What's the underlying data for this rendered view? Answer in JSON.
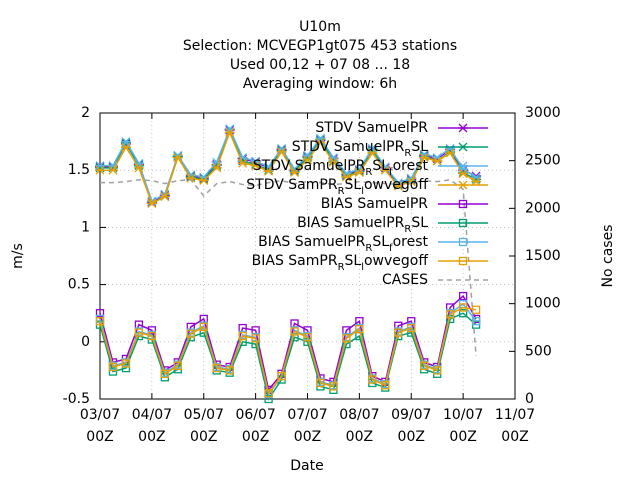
{
  "chart_data": {
    "type": "line",
    "title": [
      "U10m",
      "Selection: MCVEGP1gt075    453 stations",
      "Used  00,12  + 07 08 ... 18",
      "Averaging window:  6h"
    ],
    "x_label": "Date",
    "y_label": "m/s",
    "y2_label": "No cases",
    "x": [
      0,
      6,
      12,
      18,
      24,
      30,
      36,
      42,
      48,
      54,
      60,
      66,
      72,
      78,
      84,
      90,
      96,
      102,
      108,
      114,
      120,
      126,
      132,
      138,
      144,
      150,
      156,
      162,
      168,
      174
    ],
    "xlim": [
      0,
      192
    ],
    "xticks": [
      {
        "value": 0,
        "label": "03/07\n00Z"
      },
      {
        "value": 24,
        "label": "04/07\n00Z"
      },
      {
        "value": 48,
        "label": "05/07\n00Z"
      },
      {
        "value": 72,
        "label": "06/07\n00Z"
      },
      {
        "value": 96,
        "label": "07/07\n00Z"
      },
      {
        "value": 120,
        "label": "08/07\n00Z"
      },
      {
        "value": 144,
        "label": "09/07\n00Z"
      },
      {
        "value": 168,
        "label": "10/07\n00Z"
      },
      {
        "value": 192,
        "label": "11/07\n00Z"
      }
    ],
    "ylim": [
      -0.5,
      2
    ],
    "yticks": [
      -0.5,
      0,
      0.5,
      1,
      1.5,
      2
    ],
    "y2lim": [
      0,
      3000
    ],
    "y2ticks": [
      0,
      500,
      1000,
      1500,
      2000,
      2500,
      3000
    ],
    "grid": true,
    "legend": "top-right",
    "series": [
      {
        "name": "STDV SamuelPR",
        "color": "#9400d3",
        "marker": "cross",
        "values": [
          1.53,
          1.53,
          1.73,
          1.55,
          1.22,
          1.28,
          1.62,
          1.45,
          1.43,
          1.55,
          1.85,
          1.6,
          1.57,
          1.52,
          1.68,
          1.5,
          1.62,
          1.76,
          1.6,
          1.46,
          1.5,
          1.68,
          1.52,
          1.38,
          1.42,
          1.63,
          1.6,
          1.68,
          1.5,
          1.45
        ]
      },
      {
        "name": "STDV SamuelPR_RSL",
        "color": "#009e73",
        "marker": "cross",
        "values": [
          1.52,
          1.52,
          1.74,
          1.54,
          1.21,
          1.27,
          1.62,
          1.44,
          1.42,
          1.54,
          1.86,
          1.58,
          1.55,
          1.5,
          1.67,
          1.49,
          1.61,
          1.77,
          1.58,
          1.45,
          1.49,
          1.67,
          1.5,
          1.37,
          1.41,
          1.62,
          1.58,
          1.66,
          1.48,
          1.42
        ]
      },
      {
        "name": "STDV SamuelPR_RSL_forest",
        "color": "#56b4e9",
        "marker": "cross",
        "values": [
          1.54,
          1.54,
          1.75,
          1.56,
          1.23,
          1.29,
          1.63,
          1.46,
          1.44,
          1.57,
          1.86,
          1.61,
          1.58,
          1.53,
          1.69,
          1.51,
          1.63,
          1.78,
          1.61,
          1.47,
          1.51,
          1.69,
          1.53,
          1.39,
          1.43,
          1.64,
          1.61,
          1.69,
          1.51,
          1.44
        ]
      },
      {
        "name": "STDV SamPR_RSL_lowvegoff",
        "color": "#e69f00",
        "marker": "cross",
        "values": [
          1.5,
          1.5,
          1.7,
          1.52,
          1.21,
          1.27,
          1.61,
          1.43,
          1.41,
          1.52,
          1.83,
          1.56,
          1.54,
          1.49,
          1.66,
          1.48,
          1.59,
          1.74,
          1.57,
          1.44,
          1.48,
          1.65,
          1.5,
          1.36,
          1.4,
          1.61,
          1.58,
          1.65,
          1.47,
          1.4
        ]
      },
      {
        "name": "BIAS SamuelPR",
        "color": "#9400d3",
        "marker": "square",
        "values": [
          0.25,
          -0.18,
          -0.15,
          0.15,
          0.1,
          -0.25,
          -0.18,
          0.13,
          0.2,
          -0.2,
          -0.22,
          0.12,
          0.1,
          -0.42,
          -0.28,
          0.16,
          0.1,
          -0.32,
          -0.35,
          0.1,
          0.18,
          -0.3,
          -0.35,
          0.14,
          0.18,
          -0.18,
          -0.22,
          0.3,
          0.4,
          0.2
        ]
      },
      {
        "name": "BIAS SamuelPR_RSL",
        "color": "#009e73",
        "marker": "square",
        "values": [
          0.15,
          -0.26,
          -0.23,
          0.05,
          0.02,
          -0.31,
          -0.24,
          0.04,
          0.08,
          -0.25,
          -0.27,
          0.0,
          -0.02,
          -0.5,
          -0.33,
          0.04,
          0.0,
          -0.39,
          -0.42,
          -0.02,
          0.05,
          -0.36,
          -0.4,
          0.05,
          0.08,
          -0.24,
          -0.28,
          0.2,
          0.25,
          0.15
        ]
      },
      {
        "name": "BIAS SamuelPR_RSL_forest",
        "color": "#56b4e9",
        "marker": "square",
        "values": [
          0.2,
          -0.21,
          -0.18,
          0.09,
          0.06,
          -0.27,
          -0.2,
          0.08,
          0.14,
          -0.22,
          -0.24,
          0.06,
          0.04,
          -0.46,
          -0.3,
          0.1,
          0.05,
          -0.35,
          -0.38,
          0.04,
          0.12,
          -0.32,
          -0.37,
          0.09,
          0.13,
          -0.2,
          -0.24,
          0.25,
          0.33,
          0.18
        ]
      },
      {
        "name": "BIAS SamPR_RSL_lowvegoff",
        "color": "#e69f00",
        "marker": "square",
        "values": [
          0.18,
          -0.22,
          -0.19,
          0.08,
          0.05,
          -0.28,
          -0.21,
          0.07,
          0.13,
          -0.23,
          -0.25,
          0.05,
          0.03,
          -0.45,
          -0.3,
          0.09,
          0.04,
          -0.36,
          -0.39,
          0.03,
          0.11,
          -0.33,
          -0.38,
          0.08,
          0.12,
          -0.21,
          -0.25,
          0.24,
          0.3,
          0.28
        ]
      },
      {
        "name": "CASES",
        "color": "#a0a0a0",
        "marker": "none",
        "dash": true,
        "axis": "y2",
        "values": [
          2270,
          2270,
          2280,
          2300,
          2290,
          2260,
          2290,
          2300,
          2130,
          2260,
          2280,
          2250,
          2240,
          2270,
          2290,
          2260,
          2280,
          2270,
          2250,
          2260,
          2280,
          2270,
          2260,
          2250,
          2270,
          2290,
          2280,
          2300,
          2200,
          450
        ]
      }
    ]
  }
}
